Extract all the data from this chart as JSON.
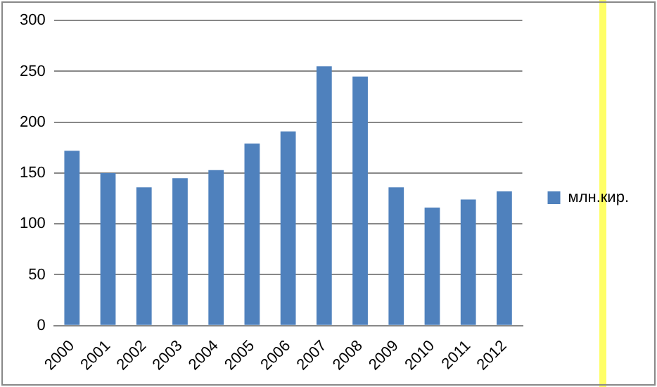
{
  "chart_data": {
    "type": "bar",
    "categories": [
      "2000",
      "2001",
      "2002",
      "2003",
      "2004",
      "2005",
      "2006",
      "2007",
      "2008",
      "2009",
      "2010",
      "2011",
      "2012"
    ],
    "series": [
      {
        "name": "млн.кир.",
        "color": "#4f81bd",
        "values": [
          172,
          150,
          136,
          145,
          153,
          179,
          191,
          255,
          245,
          136,
          116,
          124,
          132
        ]
      }
    ],
    "ylim": [
      0,
      300
    ],
    "yticks": [
      0,
      50,
      100,
      150,
      200,
      250,
      300
    ],
    "grid": "y",
    "legend": "right"
  }
}
